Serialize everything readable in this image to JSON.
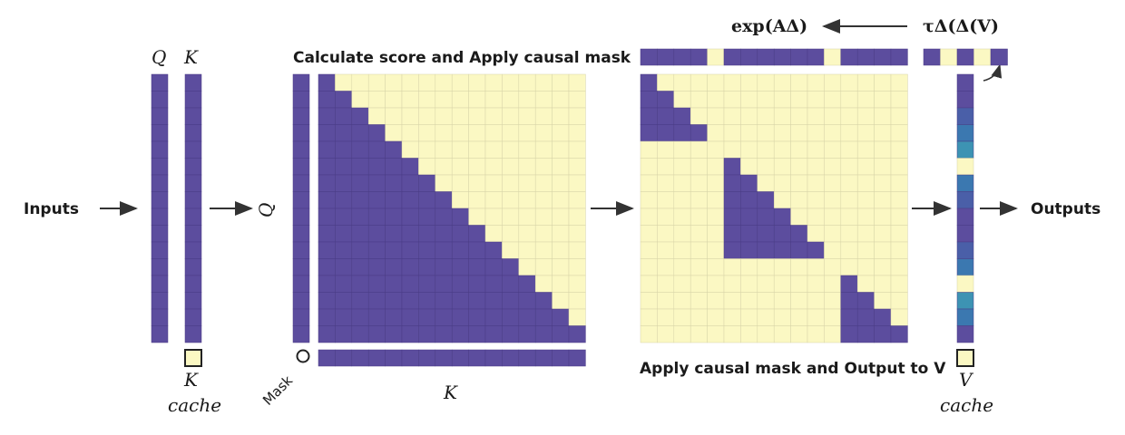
{
  "labels": {
    "inputs": "Inputs",
    "outputs": "Outputs",
    "q": "Q",
    "k": "K",
    "q_side": "Q",
    "k_bottom": "K",
    "k_cache_letter": "K",
    "k_cache_word": "cache",
    "v_cache_letter": "V",
    "v_cache_word": "cache",
    "mask": "Mask",
    "score_title": "Calculate score and Apply causal mask",
    "output_title": "Apply causal mask and Output to V",
    "exp_formula": "exp(AΔ)",
    "tau_formula": "τΔ(Δ(V)"
  },
  "colors": {
    "purple": "#5c4d9e",
    "yellow": "#fbf8c3",
    "grid": "#d8d4a8",
    "v_shades": [
      "#5c4d9e",
      "#4a5fa8",
      "#3b78b0",
      "#3d93b3",
      "#fbf8c3"
    ]
  },
  "grid_size": 16,
  "gate_row": [
    1,
    1,
    1,
    1,
    0,
    1,
    1,
    1,
    1,
    1,
    1,
    0,
    1,
    1,
    1,
    1
  ],
  "tau_row": [
    1,
    0,
    1,
    0,
    1
  ],
  "v_column": [
    0,
    0,
    1,
    2,
    3,
    4,
    2,
    1,
    0,
    0,
    1,
    2,
    4,
    3,
    2,
    0
  ]
}
